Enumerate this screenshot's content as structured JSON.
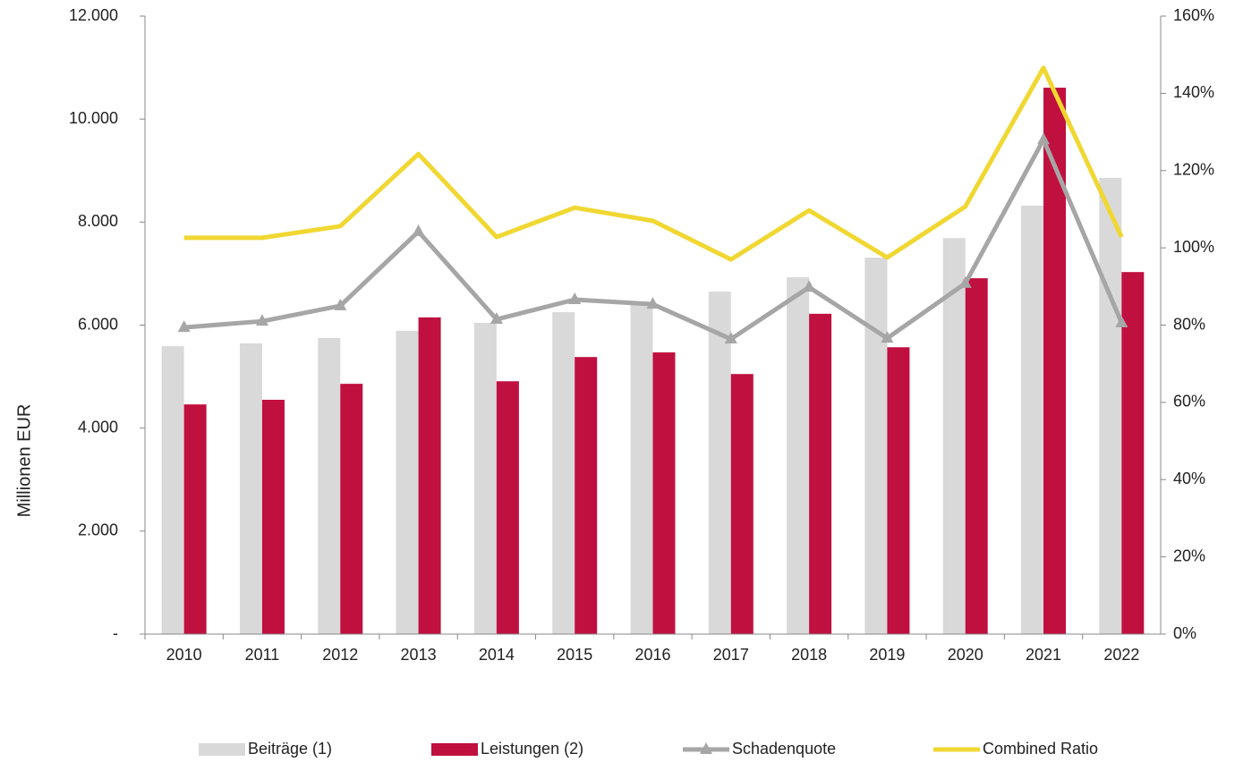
{
  "chart_data": {
    "type": "bar-line",
    "y_label": "Millionen EUR",
    "categories": [
      "2010",
      "2011",
      "2012",
      "2013",
      "2014",
      "2015",
      "2016",
      "2017",
      "2018",
      "2019",
      "2020",
      "2021",
      "2022"
    ],
    "series": [
      {
        "name": "Beiträge (1)",
        "color": "#d9d9d9",
        "kind": "bar",
        "values": [
          5590,
          5645,
          5750,
          5890,
          6045,
          6250,
          6400,
          6650,
          6930,
          7310,
          7690,
          8320,
          8860
        ]
      },
      {
        "name": "Leistungen (2)",
        "color": "#c0103f",
        "kind": "bar",
        "values": [
          4460,
          4550,
          4860,
          6150,
          4910,
          5380,
          5470,
          5050,
          6220,
          5570,
          6910,
          10610,
          7030
        ]
      },
      {
        "name": "Schadenquote",
        "color": "#a6a6a6",
        "kind": "line",
        "marker": "triangle",
        "axis": "y2",
        "values": [
          79.4,
          81,
          85,
          104.2,
          81.5,
          86.6,
          85.4,
          76.4,
          89.8,
          76.6,
          90.8,
          128,
          80.6
        ]
      },
      {
        "name": "Combined Ratio",
        "color": "#f0d732",
        "kind": "line",
        "axis": "y2",
        "values": [
          102.6,
          102.6,
          105.6,
          124.3,
          102.8,
          110.4,
          107,
          97,
          109.7,
          97.5,
          110.7,
          146.6,
          102.8
        ]
      }
    ],
    "ylim": [
      0,
      12000
    ],
    "yticks": [
      {
        "value": 0,
        "label": "-"
      },
      {
        "value": 2000,
        "label": "2.000"
      },
      {
        "value": 4000,
        "label": "4.000"
      },
      {
        "value": 6000,
        "label": "6.000"
      },
      {
        "value": 8000,
        "label": "8.000"
      },
      {
        "value": 10000,
        "label": "10.000"
      },
      {
        "value": 12000,
        "label": "12.000"
      }
    ],
    "y2lim": [
      0,
      160
    ],
    "y2ticks": [
      {
        "value": 0,
        "label": "0%"
      },
      {
        "value": 20,
        "label": "20%"
      },
      {
        "value": 40,
        "label": "40%"
      },
      {
        "value": 60,
        "label": "60%"
      },
      {
        "value": 80,
        "label": "80%"
      },
      {
        "value": 100,
        "label": "100%"
      },
      {
        "value": 120,
        "label": "120%"
      },
      {
        "value": 140,
        "label": "140%"
      },
      {
        "value": 160,
        "label": "160%"
      }
    ],
    "legend": "bottom"
  }
}
